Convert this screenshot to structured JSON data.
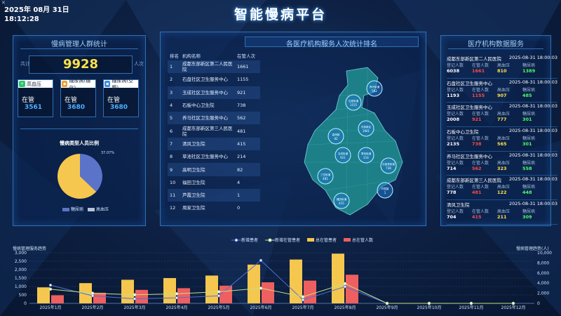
{
  "header": {
    "date": "2025年 08月 31日",
    "time": "18:12:28",
    "title": "智能慢病平台"
  },
  "left_panel": {
    "title": "慢病管理人群统计",
    "total_label_left": "共计",
    "total_label_right": "人次",
    "total_value": "9928",
    "cards": [
      {
        "icon": "heart-pulse-icon",
        "icon_color": "#2bc46a",
        "label": "高血压",
        "status": "在管",
        "count": "3561"
      },
      {
        "icon": "glucose-icon",
        "icon_color": "#f0a030",
        "label": "糖尿病(糖化)",
        "status": "在管",
        "count": "3680"
      },
      {
        "icon": "glucose-fasting-icon",
        "icon_color": "#3a8ee6",
        "label": "糖尿病(空腹)",
        "status": "在管",
        "count": "3680"
      }
    ],
    "pie": {
      "title": "慢病类型人员比例",
      "label": "37.07%",
      "slices": [
        {
          "name": "糖尿病",
          "value": 37.07,
          "color": "#5b73c9"
        },
        {
          "name": "高血压",
          "value": 62.93,
          "color": "#f5c74f"
        }
      ],
      "legend": [
        "糖尿病",
        "高血压"
      ]
    }
  },
  "center_panel": {
    "title": "各医疗机构服务人次统计排名",
    "headers": [
      "排名",
      "机构名称",
      "在管人次"
    ],
    "rows": [
      {
        "rank": "1",
        "name": "成都东部新区第二人民医院",
        "count": "1661"
      },
      {
        "rank": "2",
        "name": "石盘社区卫生服务中心",
        "count": "1155"
      },
      {
        "rank": "3",
        "name": "玉成社区卫生服务中心",
        "count": "921"
      },
      {
        "rank": "4",
        "name": "石板中心卫生院",
        "count": "738"
      },
      {
        "rank": "5",
        "name": "养马社区卫生服务中心",
        "count": "562"
      },
      {
        "rank": "6",
        "name": "成都东部新区第三人民医院",
        "count": "481"
      },
      {
        "rank": "7",
        "name": "清风卫生院",
        "count": "415"
      },
      {
        "rank": "8",
        "name": "草池社区卫生服务中心",
        "count": "214"
      },
      {
        "rank": "9",
        "name": "高明卫生院",
        "count": "82"
      },
      {
        "rank": "10",
        "name": "福田卫生院",
        "count": "4"
      },
      {
        "rank": "11",
        "name": "芦霞卫生院",
        "count": "1"
      },
      {
        "rank": "12",
        "name": "周家卫生院",
        "count": "0"
      }
    ],
    "map_markers": [
      {
        "name": "养马街道",
        "value": "562"
      },
      {
        "name": "石盘街道",
        "value": "1155"
      },
      {
        "name": "东部新区",
        "value": "1661"
      },
      {
        "name": "高明镇",
        "value": "82"
      },
      {
        "name": "玉成街道",
        "value": "921"
      },
      {
        "name": "草池街道",
        "value": "214"
      },
      {
        "name": "石板凳街道",
        "value": "738"
      },
      {
        "name": "三岔街道",
        "value": "481"
      },
      {
        "name": "芦霞镇",
        "value": "1"
      },
      {
        "name": "福田街道",
        "value": "415"
      }
    ]
  },
  "right_panel": {
    "title": "医疗机构数据服务",
    "col_labels": [
      "登记人数",
      "在管人数",
      "高血压",
      "糖尿病"
    ],
    "items": [
      {
        "name": "成都东部新区第二人民医院",
        "time": "2025-08-31 18:00:03",
        "registered": "6038",
        "managed": "1661",
        "htn": "810",
        "dm": "1389"
      },
      {
        "name": "石盘社区卫生服务中心",
        "time": "2025-08-31 18:00:03",
        "registered": "1193",
        "managed": "1155",
        "htn": "907",
        "dm": "485"
      },
      {
        "name": "玉成社区卫生服务中心",
        "time": "2025-08-31 18:00:03",
        "registered": "2008",
        "managed": "921",
        "htn": "777",
        "dm": "301"
      },
      {
        "name": "石板中心卫生院",
        "time": "2025-08-31 18:00:03",
        "registered": "2135",
        "managed": "738",
        "htn": "565",
        "dm": "301"
      },
      {
        "name": "养马社区卫生服务中心",
        "time": "2025-08-31 18:00:03",
        "registered": "714",
        "managed": "562",
        "htn": "323",
        "dm": "558"
      },
      {
        "name": "成都东部新区第三人民医院",
        "time": "2025-08-31 18:00:03",
        "registered": "778",
        "managed": "481",
        "htn": "122",
        "dm": "448"
      },
      {
        "name": "清风卫生院",
        "time": "2025-08-31 18:00:03",
        "registered": "704",
        "managed": "415",
        "htn": "211",
        "dm": "309"
      }
    ]
  },
  "chart_data": {
    "type": "bar",
    "title": "",
    "ylabel_left": "慢病管理服务趋势",
    "ylabel_right": "慢病管理趋势(人)",
    "categories": [
      "2025年1月",
      "2025年2月",
      "2025年3月",
      "2025年4月",
      "2025年5月",
      "2025年6月",
      "2025年7月",
      "2025年8月",
      "2025年9月",
      "2025年10月",
      "2025年11月",
      "2025年12月"
    ],
    "ylim_left": [
      0,
      3000
    ],
    "ylim_right": [
      0,
      10000
    ],
    "left_ticks": [
      "3,000",
      "2,500",
      "2,000",
      "1,500",
      "1,000",
      "500",
      "0"
    ],
    "right_ticks": [
      "10,000",
      "8,000",
      "6,000",
      "4,000",
      "2,000",
      "0"
    ],
    "series": [
      {
        "name": "新增患者",
        "kind": "line",
        "axis": "right",
        "color": "#4f6fd8",
        "values": [
          3600,
          1500,
          900,
          1100,
          1500,
          8500,
          700,
          3300,
          0,
          0,
          0,
          0
        ]
      },
      {
        "name": "新增在管患者",
        "kind": "line",
        "axis": "right",
        "color": "#bfe08a",
        "values": [
          2800,
          2000,
          1700,
          1900,
          2300,
          3000,
          1300,
          3900,
          0,
          0,
          0,
          0
        ]
      },
      {
        "name": "总在管患者",
        "kind": "bar",
        "axis": "left",
        "color": "#f5c74f",
        "values": [
          950,
          1200,
          1400,
          1500,
          1650,
          2300,
          2600,
          2950,
          0,
          0,
          0,
          0
        ]
      },
      {
        "name": "总在管人数",
        "kind": "bar",
        "axis": "left",
        "color": "#ef5f5f",
        "values": [
          480,
          630,
          800,
          900,
          1050,
          1250,
          1350,
          1700,
          0,
          0,
          0,
          0
        ]
      }
    ],
    "legend_position": "top-center",
    "grid": true
  }
}
